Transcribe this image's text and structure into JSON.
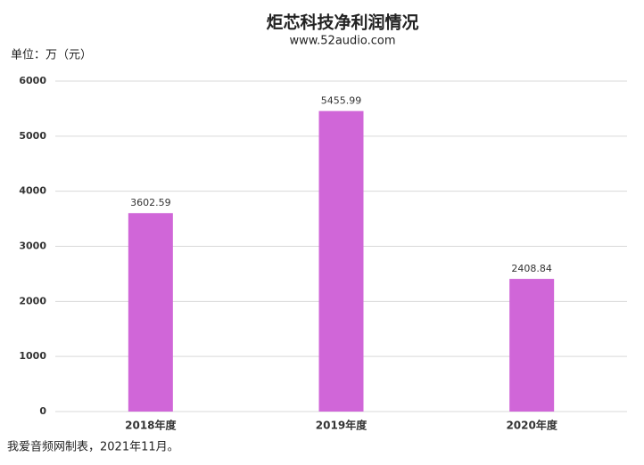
{
  "chart_data": {
    "type": "bar",
    "title": "炬芯科技净利润情况",
    "subtitle": "www.52audio.com",
    "y_label": "单位：万（元）",
    "footnote": "我爱音频网制表，2021年11月。",
    "categories": [
      "2018年度",
      "2019年度",
      "2020年度"
    ],
    "values": [
      3602.59,
      5455.99,
      2408.84
    ],
    "color": "#d066d8",
    "ylim": [
      0,
      6000
    ],
    "yticks": [
      0,
      1000,
      2000,
      3000,
      4000,
      5000,
      6000
    ],
    "grid": true
  }
}
